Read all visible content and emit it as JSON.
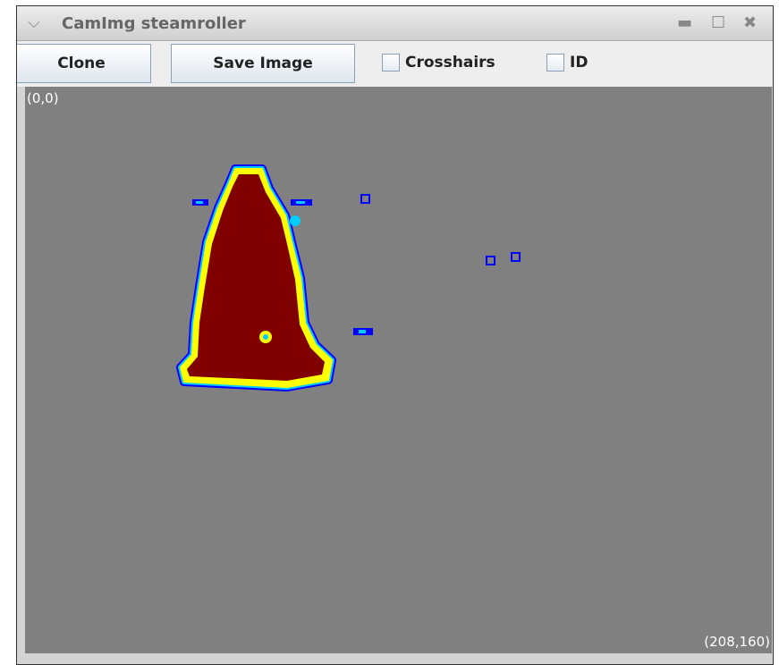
{
  "window": {
    "title": "CamImg steamroller"
  },
  "toolbar": {
    "buttons": [
      "Clone",
      "Save Image"
    ],
    "checkboxes": [
      "Crosshairs",
      "ID"
    ]
  },
  "image": {
    "top_left_label": "(0,0)",
    "bottom_right_label": "(208,160)"
  }
}
